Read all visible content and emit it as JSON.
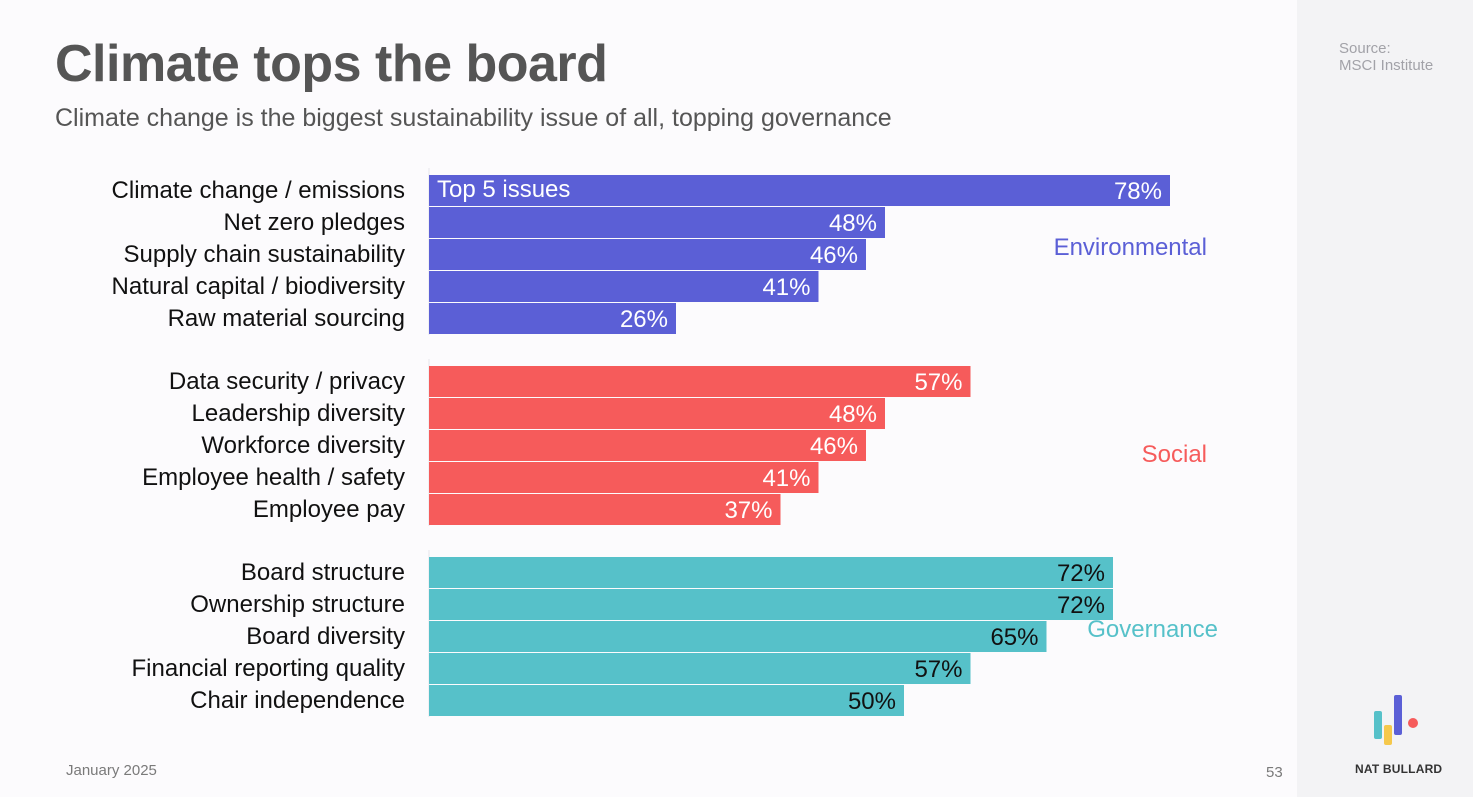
{
  "header": {
    "title": "Climate tops the board",
    "subtitle": "Climate change is the biggest sustainability issue of all, topping governance"
  },
  "source": {
    "line1": "Source:",
    "line2": "MSCI Institute"
  },
  "footer": {
    "date": "January 2025",
    "page": "53",
    "brand": "NAT BULLARD"
  },
  "colors": {
    "environmental": "#5b5fd6",
    "social": "#f65b5b",
    "governance": "#56c1c9",
    "logo_yellow": "#f5c84c",
    "logo_teal": "#56c1c9",
    "logo_purple": "#5b5fd6",
    "logo_red": "#f65b5b"
  },
  "chart_data": {
    "type": "bar",
    "orientation": "horizontal",
    "xlim": [
      0,
      100
    ],
    "annotation": "Top 5 issues",
    "groups": [
      {
        "name": "Environmental",
        "color": "#5b5fd6",
        "categories": [
          "Climate change / emissions",
          "Net zero pledges",
          "Supply chain sustainability",
          "Natural capital / biodiversity",
          "Raw material sourcing"
        ],
        "values": [
          78,
          48,
          46,
          41,
          26
        ],
        "labels": [
          "78%",
          "48%",
          "46%",
          "41%",
          "26%"
        ]
      },
      {
        "name": "Social",
        "color": "#f65b5b",
        "categories": [
          "Data security / privacy",
          "Leadership diversity",
          "Workforce diversity",
          "Employee health / safety",
          "Employee pay"
        ],
        "values": [
          57,
          48,
          46,
          41,
          37
        ],
        "labels": [
          "57%",
          "48%",
          "46%",
          "41%",
          "37%"
        ]
      },
      {
        "name": "Governance",
        "color": "#56c1c9",
        "categories": [
          "Board structure",
          "Ownership structure",
          "Board diversity",
          "Financial reporting quality",
          "Chair independence"
        ],
        "values": [
          72,
          72,
          65,
          57,
          50
        ],
        "labels": [
          "72%",
          "72%",
          "65%",
          "57%",
          "50%"
        ]
      }
    ]
  }
}
